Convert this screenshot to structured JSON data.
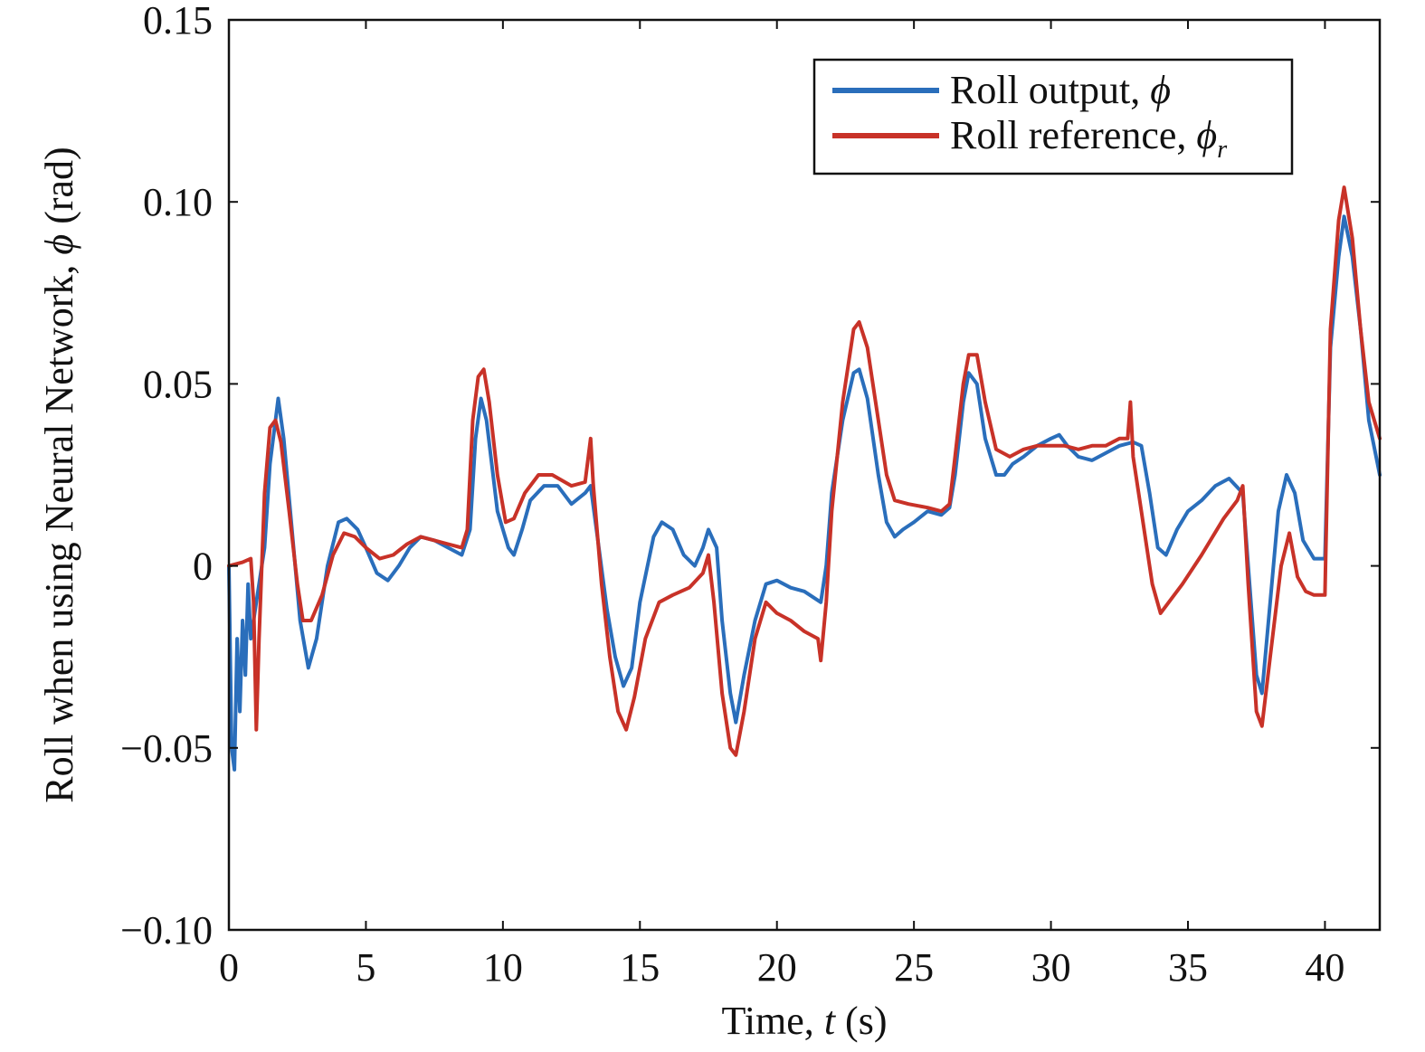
{
  "chart_data": {
    "type": "line",
    "title": "",
    "xlabel": {
      "pre": "Time, ",
      "var": "t",
      "post": " (s)"
    },
    "ylabel": {
      "pre": "Roll when using Neural Network, ",
      "var": "ϕ",
      "post": " (rad)"
    },
    "xlim": [
      0,
      42
    ],
    "ylim": [
      -0.1,
      0.15
    ],
    "xticks": [
      0,
      5,
      10,
      15,
      20,
      25,
      30,
      35,
      40
    ],
    "xtick_labels": [
      "0",
      "5",
      "10",
      "15",
      "20",
      "25",
      "30",
      "35",
      "40"
    ],
    "yticks": [
      -0.1,
      -0.05,
      0,
      0.05,
      0.1,
      0.15
    ],
    "ytick_labels": [
      "−0.10",
      "−0.05",
      "0",
      "0.05",
      "0.10",
      "0.15"
    ],
    "grid": false,
    "legend_position": "top-right",
    "series": [
      {
        "name": "Roll output, ",
        "symbol": "ϕ",
        "subscript": "",
        "color": "#2a6ebb",
        "points": [
          [
            0,
            0.0
          ],
          [
            0.1,
            -0.05
          ],
          [
            0.2,
            -0.056
          ],
          [
            0.3,
            -0.02
          ],
          [
            0.4,
            -0.04
          ],
          [
            0.5,
            -0.015
          ],
          [
            0.6,
            -0.03
          ],
          [
            0.7,
            -0.005
          ],
          [
            0.8,
            -0.02
          ],
          [
            1.0,
            -0.01
          ],
          [
            1.3,
            0.005
          ],
          [
            1.5,
            0.028
          ],
          [
            1.7,
            0.04
          ],
          [
            1.8,
            0.046
          ],
          [
            2.0,
            0.035
          ],
          [
            2.3,
            0.01
          ],
          [
            2.6,
            -0.015
          ],
          [
            2.9,
            -0.028
          ],
          [
            3.2,
            -0.02
          ],
          [
            3.6,
            0.0
          ],
          [
            4.0,
            0.012
          ],
          [
            4.3,
            0.013
          ],
          [
            4.7,
            0.01
          ],
          [
            5.0,
            0.005
          ],
          [
            5.4,
            -0.002
          ],
          [
            5.8,
            -0.004
          ],
          [
            6.2,
            0.0
          ],
          [
            6.6,
            0.005
          ],
          [
            7.0,
            0.008
          ],
          [
            7.5,
            0.007
          ],
          [
            8.0,
            0.005
          ],
          [
            8.5,
            0.003
          ],
          [
            8.8,
            0.01
          ],
          [
            9.0,
            0.035
          ],
          [
            9.2,
            0.046
          ],
          [
            9.4,
            0.04
          ],
          [
            9.8,
            0.015
          ],
          [
            10.2,
            0.005
          ],
          [
            10.4,
            0.003
          ],
          [
            10.7,
            0.01
          ],
          [
            11.0,
            0.018
          ],
          [
            11.5,
            0.022
          ],
          [
            12.0,
            0.022
          ],
          [
            12.5,
            0.017
          ],
          [
            13.0,
            0.02
          ],
          [
            13.2,
            0.022
          ],
          [
            13.5,
            0.005
          ],
          [
            13.8,
            -0.012
          ],
          [
            14.1,
            -0.025
          ],
          [
            14.4,
            -0.033
          ],
          [
            14.7,
            -0.028
          ],
          [
            15.0,
            -0.01
          ],
          [
            15.5,
            0.008
          ],
          [
            15.8,
            0.012
          ],
          [
            16.2,
            0.01
          ],
          [
            16.6,
            0.003
          ],
          [
            17.0,
            0.0
          ],
          [
            17.3,
            0.005
          ],
          [
            17.5,
            0.01
          ],
          [
            17.8,
            0.005
          ],
          [
            18.0,
            -0.015
          ],
          [
            18.3,
            -0.035
          ],
          [
            18.5,
            -0.043
          ],
          [
            18.8,
            -0.03
          ],
          [
            19.2,
            -0.015
          ],
          [
            19.6,
            -0.005
          ],
          [
            20.0,
            -0.004
          ],
          [
            20.5,
            -0.006
          ],
          [
            21.0,
            -0.007
          ],
          [
            21.6,
            -0.01
          ],
          [
            21.8,
            0.0
          ],
          [
            22.0,
            0.02
          ],
          [
            22.4,
            0.04
          ],
          [
            22.8,
            0.053
          ],
          [
            23.0,
            0.054
          ],
          [
            23.3,
            0.046
          ],
          [
            23.7,
            0.025
          ],
          [
            24.0,
            0.012
          ],
          [
            24.3,
            0.008
          ],
          [
            24.6,
            0.01
          ],
          [
            25.0,
            0.012
          ],
          [
            25.5,
            0.015
          ],
          [
            26.0,
            0.014
          ],
          [
            26.3,
            0.016
          ],
          [
            26.5,
            0.025
          ],
          [
            26.8,
            0.045
          ],
          [
            27.0,
            0.053
          ],
          [
            27.3,
            0.05
          ],
          [
            27.6,
            0.035
          ],
          [
            28.0,
            0.025
          ],
          [
            28.3,
            0.025
          ],
          [
            28.6,
            0.028
          ],
          [
            29.0,
            0.03
          ],
          [
            29.5,
            0.033
          ],
          [
            30.0,
            0.035
          ],
          [
            30.3,
            0.036
          ],
          [
            30.6,
            0.033
          ],
          [
            31.0,
            0.03
          ],
          [
            31.5,
            0.029
          ],
          [
            32.0,
            0.031
          ],
          [
            32.5,
            0.033
          ],
          [
            33.0,
            0.034
          ],
          [
            33.3,
            0.033
          ],
          [
            33.6,
            0.02
          ],
          [
            33.9,
            0.005
          ],
          [
            34.2,
            0.003
          ],
          [
            34.6,
            0.01
          ],
          [
            35.0,
            0.015
          ],
          [
            35.5,
            0.018
          ],
          [
            36.0,
            0.022
          ],
          [
            36.5,
            0.024
          ],
          [
            37.0,
            0.02
          ],
          [
            37.2,
            0.0
          ],
          [
            37.5,
            -0.03
          ],
          [
            37.7,
            -0.035
          ],
          [
            38.0,
            -0.01
          ],
          [
            38.3,
            0.015
          ],
          [
            38.6,
            0.025
          ],
          [
            38.9,
            0.02
          ],
          [
            39.2,
            0.007
          ],
          [
            39.6,
            0.002
          ],
          [
            40.0,
            0.002
          ],
          [
            40.2,
            0.06
          ],
          [
            40.5,
            0.085
          ],
          [
            40.7,
            0.096
          ],
          [
            41.0,
            0.085
          ],
          [
            41.3,
            0.065
          ],
          [
            41.6,
            0.04
          ],
          [
            42.0,
            0.025
          ]
        ]
      },
      {
        "name": "Roll reference, ",
        "symbol": "ϕ",
        "subscript": "r",
        "color": "#c83228",
        "points": [
          [
            0,
            0.0
          ],
          [
            0.5,
            0.001
          ],
          [
            0.8,
            0.002
          ],
          [
            0.9,
            -0.01
          ],
          [
            1.0,
            -0.045
          ],
          [
            1.1,
            -0.02
          ],
          [
            1.3,
            0.02
          ],
          [
            1.5,
            0.038
          ],
          [
            1.7,
            0.04
          ],
          [
            1.9,
            0.034
          ],
          [
            2.2,
            0.015
          ],
          [
            2.5,
            -0.005
          ],
          [
            2.7,
            -0.015
          ],
          [
            3.0,
            -0.015
          ],
          [
            3.4,
            -0.008
          ],
          [
            3.8,
            0.003
          ],
          [
            4.2,
            0.009
          ],
          [
            4.6,
            0.008
          ],
          [
            5.0,
            0.005
          ],
          [
            5.5,
            0.002
          ],
          [
            6.0,
            0.003
          ],
          [
            6.5,
            0.006
          ],
          [
            7.0,
            0.008
          ],
          [
            7.5,
            0.007
          ],
          [
            8.0,
            0.006
          ],
          [
            8.5,
            0.005
          ],
          [
            8.7,
            0.01
          ],
          [
            8.9,
            0.04
          ],
          [
            9.1,
            0.052
          ],
          [
            9.3,
            0.054
          ],
          [
            9.5,
            0.045
          ],
          [
            9.8,
            0.025
          ],
          [
            10.1,
            0.012
          ],
          [
            10.4,
            0.013
          ],
          [
            10.8,
            0.02
          ],
          [
            11.3,
            0.025
          ],
          [
            11.8,
            0.025
          ],
          [
            12.5,
            0.022
          ],
          [
            13.0,
            0.023
          ],
          [
            13.2,
            0.035
          ],
          [
            13.3,
            0.022
          ],
          [
            13.6,
            -0.005
          ],
          [
            13.9,
            -0.025
          ],
          [
            14.2,
            -0.04
          ],
          [
            14.5,
            -0.045
          ],
          [
            14.8,
            -0.036
          ],
          [
            15.2,
            -0.02
          ],
          [
            15.7,
            -0.01
          ],
          [
            16.2,
            -0.008
          ],
          [
            16.8,
            -0.006
          ],
          [
            17.3,
            -0.002
          ],
          [
            17.5,
            0.003
          ],
          [
            17.7,
            -0.01
          ],
          [
            18.0,
            -0.035
          ],
          [
            18.3,
            -0.05
          ],
          [
            18.5,
            -0.052
          ],
          [
            18.8,
            -0.04
          ],
          [
            19.2,
            -0.02
          ],
          [
            19.6,
            -0.01
          ],
          [
            20.0,
            -0.013
          ],
          [
            20.5,
            -0.015
          ],
          [
            21.0,
            -0.018
          ],
          [
            21.5,
            -0.02
          ],
          [
            21.6,
            -0.026
          ],
          [
            21.8,
            -0.01
          ],
          [
            22.0,
            0.015
          ],
          [
            22.4,
            0.045
          ],
          [
            22.8,
            0.065
          ],
          [
            23.0,
            0.067
          ],
          [
            23.3,
            0.06
          ],
          [
            23.7,
            0.04
          ],
          [
            24.0,
            0.025
          ],
          [
            24.3,
            0.018
          ],
          [
            24.8,
            0.017
          ],
          [
            25.5,
            0.016
          ],
          [
            26.0,
            0.015
          ],
          [
            26.3,
            0.017
          ],
          [
            26.5,
            0.03
          ],
          [
            26.8,
            0.05
          ],
          [
            27.0,
            0.058
          ],
          [
            27.3,
            0.058
          ],
          [
            27.6,
            0.045
          ],
          [
            28.0,
            0.032
          ],
          [
            28.5,
            0.03
          ],
          [
            29.0,
            0.032
          ],
          [
            29.5,
            0.033
          ],
          [
            30.0,
            0.033
          ],
          [
            30.5,
            0.033
          ],
          [
            31.0,
            0.032
          ],
          [
            31.5,
            0.033
          ],
          [
            32.0,
            0.033
          ],
          [
            32.5,
            0.035
          ],
          [
            32.8,
            0.035
          ],
          [
            32.9,
            0.045
          ],
          [
            33.0,
            0.03
          ],
          [
            33.3,
            0.015
          ],
          [
            33.7,
            -0.005
          ],
          [
            34.0,
            -0.013
          ],
          [
            34.3,
            -0.01
          ],
          [
            34.8,
            -0.005
          ],
          [
            35.5,
            0.003
          ],
          [
            36.3,
            0.013
          ],
          [
            36.8,
            0.018
          ],
          [
            37.0,
            0.022
          ],
          [
            37.2,
            -0.005
          ],
          [
            37.5,
            -0.04
          ],
          [
            37.7,
            -0.044
          ],
          [
            38.0,
            -0.025
          ],
          [
            38.4,
            0.0
          ],
          [
            38.7,
            0.009
          ],
          [
            39.0,
            -0.003
          ],
          [
            39.3,
            -0.007
          ],
          [
            39.6,
            -0.008
          ],
          [
            40.0,
            -0.008
          ],
          [
            40.2,
            0.065
          ],
          [
            40.5,
            0.095
          ],
          [
            40.7,
            0.104
          ],
          [
            41.0,
            0.09
          ],
          [
            41.3,
            0.065
          ],
          [
            41.6,
            0.045
          ],
          [
            42.0,
            0.035
          ]
        ]
      }
    ]
  }
}
